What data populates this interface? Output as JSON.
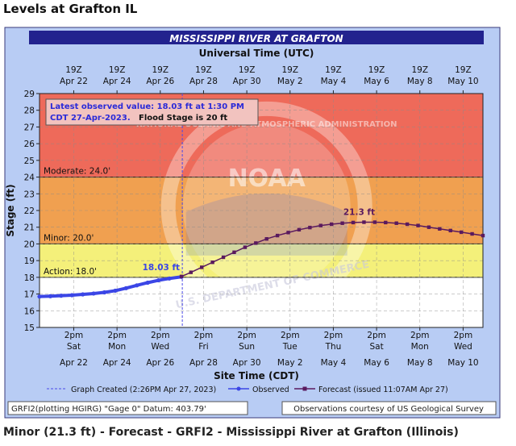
{
  "page": {
    "heading": "Levels at Grafton IL",
    "caption": "Minor (21.3 ft) - Forecast - GRFI2 - Mississippi River at Grafton (Illinois)"
  },
  "chart_data": {
    "type": "line",
    "title": "MISSISSIPPI RIVER AT GRAFTON",
    "top_axis_label": "Universal Time (UTC)",
    "xlabel": "Site Time (CDT)",
    "ylabel": "Stage (ft)",
    "ylim": [
      15,
      29
    ],
    "yticks": [
      15,
      16,
      17,
      18,
      19,
      20,
      21,
      22,
      23,
      24,
      25,
      26,
      27,
      28,
      29
    ],
    "x_range_days": [
      "Apr 21 00:00",
      "May 11 12:00"
    ],
    "top_ticks": [
      {
        "hour": "19Z",
        "date": "Apr 22"
      },
      {
        "hour": "19Z",
        "date": "Apr 24"
      },
      {
        "hour": "19Z",
        "date": "Apr 26"
      },
      {
        "hour": "19Z",
        "date": "Apr 28"
      },
      {
        "hour": "19Z",
        "date": "Apr 30"
      },
      {
        "hour": "19Z",
        "date": "May  2"
      },
      {
        "hour": "19Z",
        "date": "May  4"
      },
      {
        "hour": "19Z",
        "date": "May  6"
      },
      {
        "hour": "19Z",
        "date": "May  8"
      },
      {
        "hour": "19Z",
        "date": "May 10"
      }
    ],
    "bottom_ticks": [
      {
        "time": "2pm",
        "day": "Sat",
        "date": "Apr 22"
      },
      {
        "time": "2pm",
        "day": "Mon",
        "date": "Apr 24"
      },
      {
        "time": "2pm",
        "day": "Wed",
        "date": "Apr 26"
      },
      {
        "time": "2pm",
        "day": "Fri",
        "date": "Apr 28"
      },
      {
        "time": "2pm",
        "day": "Sun",
        "date": "Apr 30"
      },
      {
        "time": "2pm",
        "day": "Tue",
        "date": "May 2"
      },
      {
        "time": "2pm",
        "day": "Thu",
        "date": "May 4"
      },
      {
        "time": "2pm",
        "day": "Sat",
        "date": "May 6"
      },
      {
        "time": "2pm",
        "day": "Mon",
        "date": "May 8"
      },
      {
        "time": "2pm",
        "day": "Wed",
        "date": "May 10"
      }
    ],
    "flood_categories": [
      {
        "label": "Moderate: 24.0'",
        "stage": 24.0,
        "color": "#f0a050"
      },
      {
        "label": "Minor: 20.0'",
        "stage": 20.0,
        "color": "#f4f07a"
      },
      {
        "label": "Action: 18.0'",
        "stage": 18.0,
        "color": "#ffffff"
      }
    ],
    "major_color": "#ee6a5a",
    "info_box": {
      "line1": "Latest observed value: 18.03 ft at 1:30 PM",
      "line2": "CDT 27-Apr-2023.",
      "line2_bold": "Flood Stage is 20 ft"
    },
    "observed_label": "18.03 ft",
    "forecast_crest_label": "21.3 ft",
    "graph_created_day": "Apr 27 14:26",
    "series": [
      {
        "name": "Observed",
        "color": "#3b46e6",
        "x": [
          "Apr 21 00:00",
          "Apr 21 12:00",
          "Apr 22 00:00",
          "Apr 22 12:00",
          "Apr 23 00:00",
          "Apr 23 12:00",
          "Apr 24 00:00",
          "Apr 24 12:00",
          "Apr 25 00:00",
          "Apr 25 12:00",
          "Apr 26 00:00",
          "Apr 26 12:00",
          "Apr 27 00:00",
          "Apr 27 13:30"
        ],
        "values": [
          16.85,
          16.87,
          16.9,
          16.93,
          16.98,
          17.03,
          17.1,
          17.2,
          17.35,
          17.52,
          17.68,
          17.82,
          17.93,
          18.03
        ]
      },
      {
        "name": "Forecast",
        "color": "#5a1a5e",
        "x": [
          "Apr 27 13:30",
          "Apr 28 00:00",
          "Apr 28 12:00",
          "Apr 29 00:00",
          "Apr 29 12:00",
          "Apr 30 00:00",
          "Apr 30 12:00",
          "May 1 00:00",
          "May 1 12:00",
          "May 2 00:00",
          "May 2 12:00",
          "May 3 00:00",
          "May 3 12:00",
          "May 4 00:00",
          "May 4 12:00",
          "May 5 00:00",
          "May 5 12:00",
          "May 6 00:00",
          "May 6 12:00",
          "May 7 00:00",
          "May 7 12:00",
          "May 8 00:00",
          "May 8 12:00",
          "May 9 00:00",
          "May 9 12:00",
          "May 10 00:00",
          "May 10 12:00",
          "May 11 00:00",
          "May 11 12:00"
        ],
        "values": [
          18.05,
          18.3,
          18.6,
          18.9,
          19.2,
          19.5,
          19.8,
          20.05,
          20.3,
          20.5,
          20.68,
          20.85,
          20.98,
          21.1,
          21.18,
          21.24,
          21.28,
          21.3,
          21.3,
          21.28,
          21.24,
          21.18,
          21.1,
          21.0,
          20.9,
          20.8,
          20.7,
          20.6,
          20.5
        ]
      }
    ],
    "legend": {
      "created": "Graph Created (2:26PM Apr 27, 2023)",
      "observed": "Observed",
      "forecast": "Forecast (issued 11:07AM Apr 27)"
    },
    "footer_left": "GRFI2(plotting HGIRG) \"Gage 0\" Datum: 403.79'",
    "footer_right": "Observations courtesy of US Geological Survey",
    "watermark": {
      "logo": "NOAA",
      "ring_text": "NATIONAL OCEANIC AND ATMOSPHERIC ADMINISTRATION",
      "bottom_text": "U.S. DEPARTMENT OF COMMERCE"
    }
  }
}
